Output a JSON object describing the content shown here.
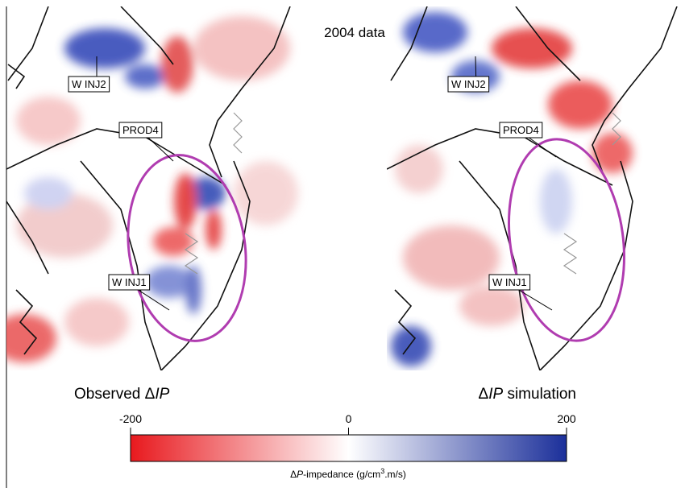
{
  "title": "2004 data",
  "panels": [
    {
      "caption": [
        "Observed Δ",
        "IP"
      ],
      "labels": [
        "W INJ2",
        "PROD4",
        "W INJ1"
      ]
    },
    {
      "caption": [
        "Δ",
        "IP",
        " simulation"
      ],
      "labels": [
        "W INJ2",
        "PROD4",
        "W INJ1"
      ]
    }
  ],
  "colorbar": {
    "label": [
      "Δ",
      "P",
      "-impedance (g/cm",
      "3",
      ".m/s)"
    ],
    "lim": [
      -200,
      200
    ],
    "ticks": [
      -200,
      0,
      200
    ],
    "colors": [
      "#e8191e",
      "#ffffff",
      "#1b2f9a"
    ]
  }
}
